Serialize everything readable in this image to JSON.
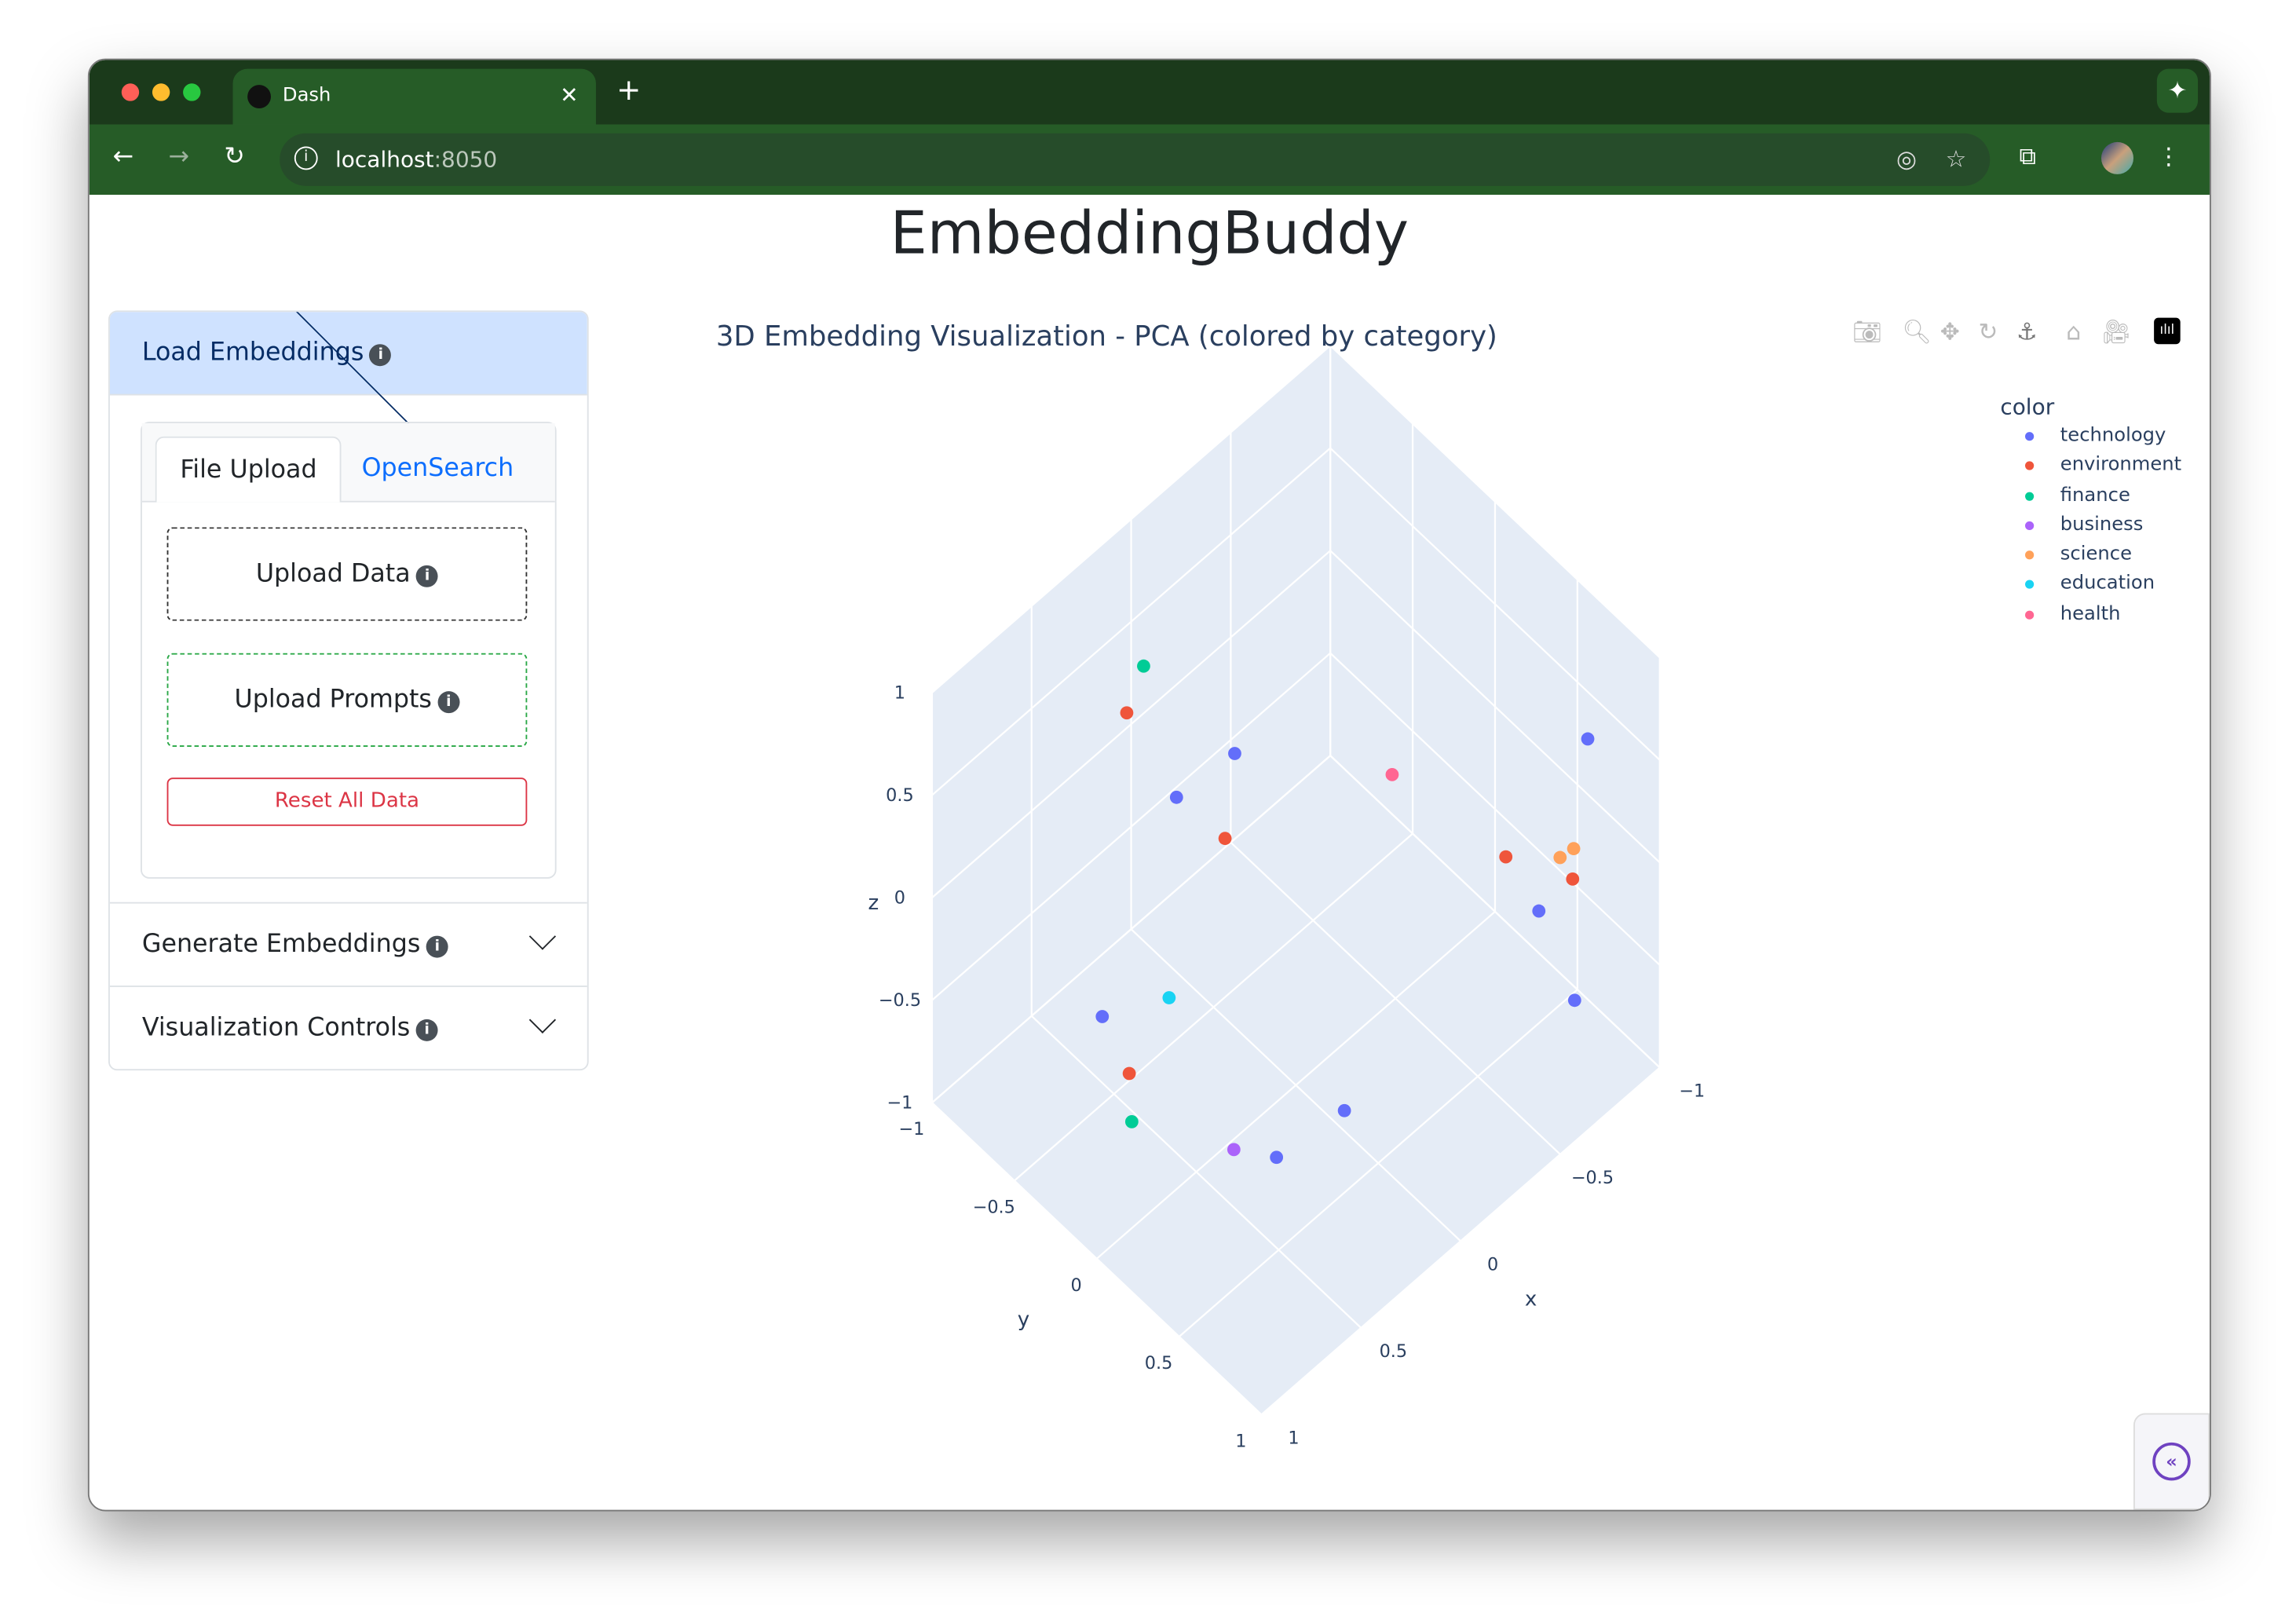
{
  "browser": {
    "tab_title": "Dash",
    "url_host": "localhost",
    "url_port": ":8050"
  },
  "app": {
    "title": "EmbeddingBuddy"
  },
  "sidebar": {
    "load": {
      "label": "Load Embeddings",
      "tabs": [
        "File Upload",
        "OpenSearch"
      ],
      "upload_data": "Upload Data",
      "upload_prompts": "Upload Prompts",
      "reset": "Reset All Data"
    },
    "generate": {
      "label": "Generate Embeddings"
    },
    "viz": {
      "label": "Visualization Controls"
    },
    "info": "i"
  },
  "chart_data": {
    "type": "scatter3d",
    "title": "3D Embedding Visualization - PCA (colored by category)",
    "legend_title": "color",
    "legend_position": "top-right",
    "axes": {
      "x": {
        "label": "x",
        "range": [
          -1,
          1
        ],
        "ticks": [
          "−1",
          "−0.5",
          "0",
          "0.5",
          "1"
        ]
      },
      "y": {
        "label": "y",
        "range": [
          -1,
          1
        ],
        "ticks": [
          "−1",
          "−0.5",
          "0",
          "0.5",
          "1"
        ]
      },
      "z": {
        "label": "z",
        "range": [
          -1,
          1
        ],
        "ticks": [
          "−1",
          "−0.5",
          "0",
          "0.5",
          "1"
        ]
      }
    },
    "series": [
      {
        "name": "technology",
        "color": "#636efa",
        "points": [
          [
            0.15,
            -0.19,
            0.6
          ],
          [
            0.31,
            -0.35,
            0.4
          ],
          [
            -0.87,
            0.72,
            0.5
          ],
          [
            -0.55,
            0.81,
            0
          ],
          [
            -0.68,
            0.87,
            -0.5
          ],
          [
            0.6,
            -0.45,
            -0.5
          ],
          [
            0.42,
            0.39,
            -0.7
          ],
          [
            0.17,
            0.5,
            -0.6
          ]
        ]
      },
      {
        "name": "environment",
        "color": "#ef553b",
        "points": [
          [
            0.32,
            -0.64,
            0.6
          ],
          [
            0.24,
            -0.14,
            0.3
          ],
          [
            -0.5,
            0.67,
            0.2
          ],
          [
            -0.67,
            0.87,
            0.1
          ],
          [
            0.63,
            -0.25,
            -0.6
          ]
        ]
      },
      {
        "name": "finance",
        "color": "#00cc96",
        "points": [
          [
            0.26,
            -0.61,
            0.8
          ],
          [
            0.7,
            -0.15,
            -0.7
          ]
        ]
      },
      {
        "name": "business",
        "color": "#ab63fa",
        "points": [
          [
            0.51,
            0.24,
            -0.7
          ]
        ]
      },
      {
        "name": "science",
        "color": "#ffa15a",
        "points": [
          [
            -0.64,
            0.83,
            0.2
          ],
          [
            -0.7,
            0.84,
            0.2
          ]
        ]
      },
      {
        "name": "education",
        "color": "#19d3f3",
        "points": [
          [
            0.43,
            -0.25,
            -0.4
          ]
        ]
      },
      {
        "name": "health",
        "color": "#ff6692",
        "points": [
          [
            -0.26,
            0.27,
            0.5
          ]
        ]
      }
    ]
  }
}
